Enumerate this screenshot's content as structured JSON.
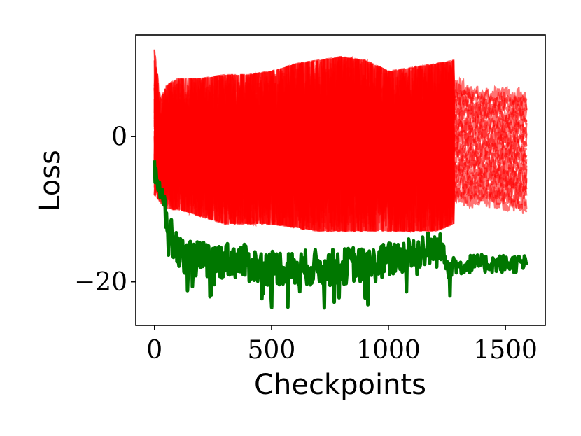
{
  "chart_data": {
    "type": "line",
    "title": "",
    "xlabel": "Checkpoints",
    "ylabel": "Loss",
    "xlim": [
      -80,
      1670
    ],
    "ylim": [
      -26,
      14
    ],
    "x_ticks": [
      {
        "value": 0,
        "label": "0"
      },
      {
        "value": 500,
        "label": "500"
      },
      {
        "value": 1000,
        "label": "1000"
      },
      {
        "value": 1500,
        "label": "1500"
      }
    ],
    "y_ticks": [
      {
        "value": 0,
        "label": "0"
      },
      {
        "value": -20,
        "label": "−20"
      }
    ],
    "grid": false,
    "legend": "none",
    "colors": {
      "baseline": "#007700",
      "runs": "#ff0000"
    },
    "series": [
      {
        "role": "highlighted-run",
        "color": "#007700",
        "x": [
          0,
          25,
          50,
          75,
          100,
          150,
          200,
          250,
          300,
          350,
          400,
          450,
          500,
          550,
          600,
          650,
          700,
          750,
          800,
          850,
          900,
          950,
          1000,
          1050,
          1100,
          1150,
          1200,
          1250,
          1300,
          1350,
          1400,
          1450,
          1500,
          1550,
          1590
        ],
        "y": [
          -4,
          -8,
          -11,
          -14,
          -16,
          -16.5,
          -17,
          -17,
          -17,
          -17,
          -17.5,
          -18,
          -18,
          -18,
          -18.5,
          -18,
          -18,
          -18,
          -18,
          -17.5,
          -18,
          -17.5,
          -17,
          -16.5,
          -16,
          -15.5,
          -15.5,
          -16,
          -18,
          -17.5,
          -17.5,
          -17.5,
          -17.5,
          -17.5,
          -17.5
        ]
      },
      {
        "role": "other-runs-upper-envelope",
        "color": "#ff0000",
        "x": [
          0,
          25,
          50,
          100,
          200,
          300,
          400,
          500,
          600,
          700,
          800,
          900,
          1000,
          1100,
          1200,
          1280,
          1350,
          1450,
          1590
        ],
        "y": [
          12,
          5,
          7,
          8,
          8,
          8.5,
          8.5,
          9,
          10,
          10.5,
          11,
          10.5,
          9,
          9.5,
          10,
          10.5,
          9.5,
          9,
          9
        ]
      },
      {
        "role": "other-runs-lower-envelope",
        "color": "#ff0000",
        "x": [
          0,
          25,
          50,
          100,
          200,
          300,
          400,
          500,
          600,
          700,
          800,
          900,
          1000,
          1100,
          1200,
          1280,
          1350,
          1450,
          1590
        ],
        "y": [
          -8,
          -9,
          -10,
          -10,
          -11,
          -12,
          -12,
          -12,
          -12.5,
          -13,
          -13,
          -13,
          -13,
          -13,
          -13,
          -12,
          -12,
          -12,
          -13
        ]
      }
    ]
  }
}
